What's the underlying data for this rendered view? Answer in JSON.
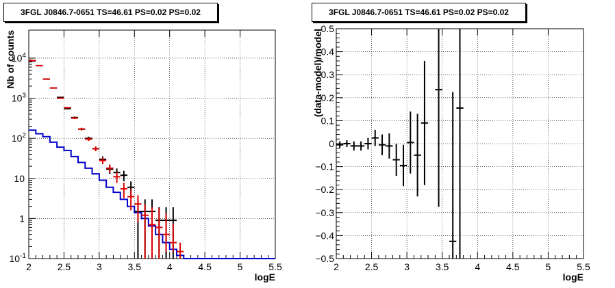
{
  "panels": {
    "left": {
      "title": "3FGL J0846.7-0651 TS=46.61 PS=0.02 PS=0.02"
    },
    "right": {
      "title": "3FGL J0846.7-0651 TS=46.61 PS=0.02 PS=0.02"
    }
  },
  "colors": {
    "data_black": "#000000",
    "model_red": "#dd0000",
    "bkg_blue": "#0000cc",
    "grid": "#000000"
  },
  "chart_data": [
    {
      "type": "line",
      "xlabel": "logE",
      "ylabel": "Nb of counts",
      "xlim": [
        2,
        5.5
      ],
      "ylim": [
        0.1,
        50000
      ],
      "yscale": "log",
      "grid": true,
      "x_ticks": [
        "2",
        "2.5",
        "3",
        "3.5",
        "4",
        "4.5",
        "5",
        "5.5"
      ],
      "y_ticks": [
        "10^-1",
        "1",
        "10",
        "10^2",
        "10^3",
        "10^4"
      ],
      "bin_width": 0.1,
      "series": [
        {
          "role": "data",
          "color": "black",
          "x": [
            2.05,
            2.15,
            2.25,
            2.35,
            2.45,
            2.55,
            2.65,
            2.75,
            2.85,
            2.95,
            3.05,
            3.15,
            3.25,
            3.35,
            3.45,
            3.55,
            3.65,
            3.75,
            3.85,
            3.95,
            4.05
          ],
          "y": [
            8500,
            6500,
            3000,
            1800,
            1050,
            550,
            330,
            170,
            100,
            55,
            30,
            17,
            14,
            12,
            6,
            1.5,
            1.5,
            1.5,
            0.9,
            0.9,
            0.9
          ],
          "yerr_lo": [
            92,
            80,
            55,
            42,
            32,
            23,
            18,
            13,
            10,
            7,
            5.5,
            4.1,
            3.7,
            3.5,
            2.4,
            1.4,
            1.4,
            1.4,
            0.85,
            0.85,
            0.85
          ],
          "yerr_hi": [
            92,
            80,
            55,
            42,
            32,
            23,
            18,
            13,
            10,
            7,
            5.5,
            4.1,
            3.7,
            3.5,
            2.4,
            1.5,
            1.5,
            1.5,
            1.0,
            1.0,
            1.0
          ]
        },
        {
          "role": "model",
          "color": "red",
          "x": [
            2.05,
            2.15,
            2.25,
            2.35,
            2.45,
            2.55,
            2.65,
            2.75,
            2.85,
            2.95,
            3.05,
            3.15,
            3.25,
            3.35,
            3.45,
            3.55,
            3.65,
            3.75,
            3.85,
            3.95,
            4.05,
            4.15
          ],
          "y": [
            8700,
            6500,
            3000,
            1800,
            1000,
            580,
            320,
            170,
            95,
            55,
            28,
            18,
            11,
            5.5,
            3.5,
            2.3,
            1.2,
            0.7,
            0.6,
            0.4,
            0.25,
            0.15
          ],
          "yerr_lo": [
            93,
            80,
            55,
            42,
            32,
            24,
            18,
            13,
            9.7,
            7.4,
            5.3,
            4.2,
            3.3,
            2.3,
            1.9,
            1.5,
            1.1,
            0.6,
            0.5,
            0.25,
            0.1,
            0.05
          ],
          "yerr_hi": [
            93,
            80,
            55,
            42,
            32,
            24,
            18,
            13,
            9.7,
            7.4,
            5.3,
            4.2,
            3.3,
            2.3,
            1.9,
            1.5,
            1.1,
            1.2,
            1.2,
            0.9,
            0.5,
            0.1
          ]
        },
        {
          "role": "background",
          "color": "blue",
          "step_edges": [
            2.0,
            2.1,
            2.2,
            2.3,
            2.4,
            2.5,
            2.6,
            2.7,
            2.8,
            2.9,
            3.0,
            3.1,
            3.2,
            3.3,
            3.4,
            3.5,
            3.6,
            3.7,
            3.8,
            3.9,
            4.0,
            4.1,
            4.2,
            4.3,
            4.4,
            4.5,
            4.6,
            4.7,
            4.8,
            4.9,
            5.0,
            5.1,
            5.2,
            5.3,
            5.4,
            5.5
          ],
          "values": [
            160,
            130,
            110,
            80,
            60,
            50,
            35,
            25,
            18,
            13,
            9,
            6,
            4.5,
            3,
            2,
            1.4,
            1,
            0.65,
            0.4,
            0.25,
            0.17,
            0.12,
            0.1,
            0.1,
            0.1,
            0.1,
            0.1,
            0.1,
            0.1,
            0.1,
            0.1,
            0.1,
            0.1,
            0.1,
            0.1
          ]
        }
      ]
    },
    {
      "type": "scatter",
      "xlabel": "logE",
      "ylabel": "(data-model)/model",
      "xlim": [
        2,
        5.5
      ],
      "ylim": [
        -0.5,
        0.5
      ],
      "grid": true,
      "x_ticks": [
        "2",
        "2.5",
        "3",
        "3.5",
        "4",
        "4.5",
        "5",
        "5.5"
      ],
      "y_ticks": [
        "−0.5",
        "−0.4",
        "−0.3",
        "−0.2",
        "−0.1",
        "0",
        "0.1",
        "0.2",
        "0.3",
        "0.4",
        "0.5"
      ],
      "bin_width": 0.1,
      "series": [
        {
          "color": "black",
          "x": [
            2.05,
            2.15,
            2.25,
            2.35,
            2.45,
            2.55,
            2.65,
            2.75,
            2.85,
            2.95,
            3.05,
            3.15,
            3.25,
            3.45,
            3.65,
            3.75
          ],
          "y": [
            -0.005,
            0.0,
            -0.01,
            -0.01,
            0.0,
            0.025,
            -0.005,
            -0.01,
            -0.07,
            -0.095,
            0.005,
            -0.05,
            0.09,
            0.235,
            -0.425,
            0.155
          ],
          "yerr": [
            0.015,
            0.015,
            0.02,
            0.02,
            0.025,
            0.035,
            0.045,
            0.055,
            0.07,
            0.09,
            0.135,
            0.18,
            0.27,
            0.51,
            0.65,
            1.0
          ]
        }
      ]
    }
  ]
}
